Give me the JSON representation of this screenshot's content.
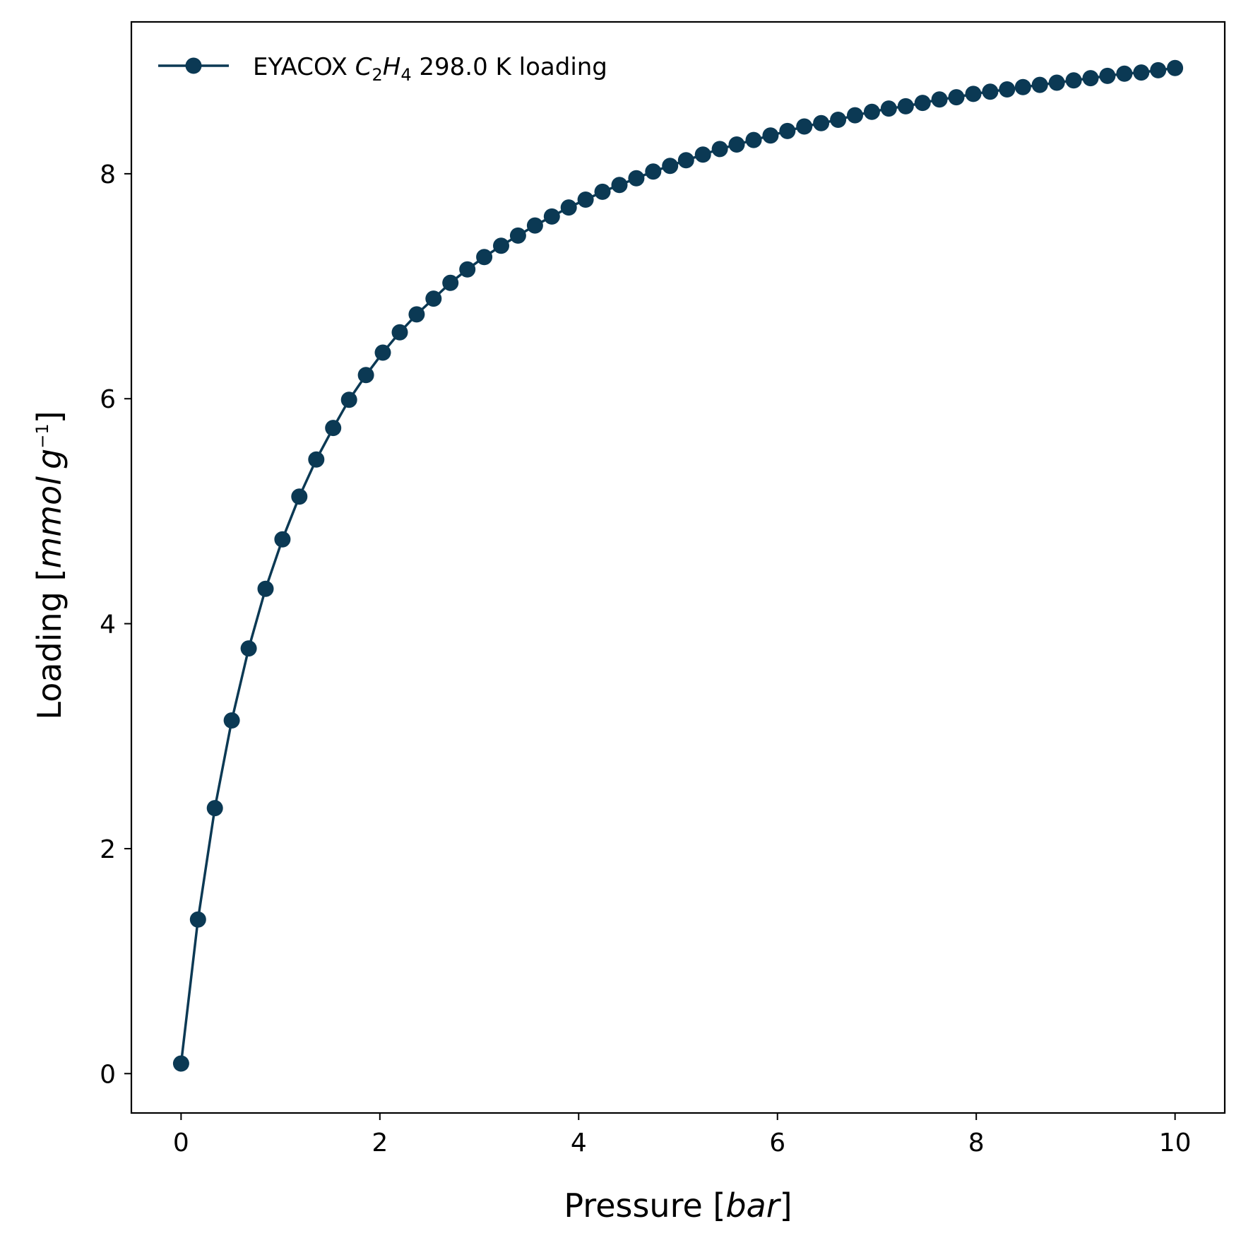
{
  "chart_data": {
    "type": "line",
    "xlabel": {
      "text": "Pressure [",
      "italic": "bar",
      "close": "]"
    },
    "ylabel": {
      "text": "Loading [",
      "italic1": "mmol",
      "italic2": "g",
      "sup": "−1",
      "close": "]"
    },
    "xlim": [
      -0.5,
      10.5
    ],
    "ylim": [
      -0.35,
      9.35
    ],
    "xticks": [
      0,
      2,
      4,
      6,
      8,
      10
    ],
    "yticks": [
      0,
      2,
      4,
      6,
      8
    ],
    "grid": false,
    "legend_position": "top-left",
    "series": [
      {
        "name_parts": {
          "prefix": "EYACOX ",
          "c": "C",
          "c_sub": "2",
          "h": "H",
          "h_sub": "4",
          "suffix": " 298.0 K loading"
        },
        "color": "#0b3954",
        "marker": "circle",
        "x": [
          0.0,
          0.17,
          0.34,
          0.51,
          0.68,
          0.85,
          1.02,
          1.19,
          1.36,
          1.53,
          1.69,
          1.86,
          2.03,
          2.2,
          2.37,
          2.54,
          2.71,
          2.88,
          3.05,
          3.22,
          3.39,
          3.56,
          3.73,
          3.9,
          4.07,
          4.24,
          4.41,
          4.58,
          4.75,
          4.92,
          5.08,
          5.25,
          5.42,
          5.59,
          5.76,
          5.93,
          6.1,
          6.27,
          6.44,
          6.61,
          6.78,
          6.95,
          7.12,
          7.29,
          7.46,
          7.63,
          7.8,
          7.97,
          8.14,
          8.31,
          8.47,
          8.64,
          8.81,
          8.98,
          9.15,
          9.32,
          9.49,
          9.66,
          9.83,
          10.0
        ],
        "y": [
          0.09,
          1.37,
          2.36,
          3.14,
          3.78,
          4.31,
          4.75,
          5.13,
          5.46,
          5.74,
          5.99,
          6.21,
          6.41,
          6.59,
          6.75,
          6.89,
          7.03,
          7.15,
          7.26,
          7.36,
          7.45,
          7.54,
          7.62,
          7.7,
          7.77,
          7.84,
          7.9,
          7.96,
          8.02,
          8.07,
          8.12,
          8.17,
          8.22,
          8.26,
          8.3,
          8.34,
          8.38,
          8.42,
          8.45,
          8.48,
          8.52,
          8.55,
          8.58,
          8.6,
          8.63,
          8.66,
          8.68,
          8.71,
          8.73,
          8.75,
          8.77,
          8.79,
          8.81,
          8.83,
          8.85,
          8.87,
          8.89,
          8.9,
          8.92,
          8.94
        ]
      }
    ]
  }
}
